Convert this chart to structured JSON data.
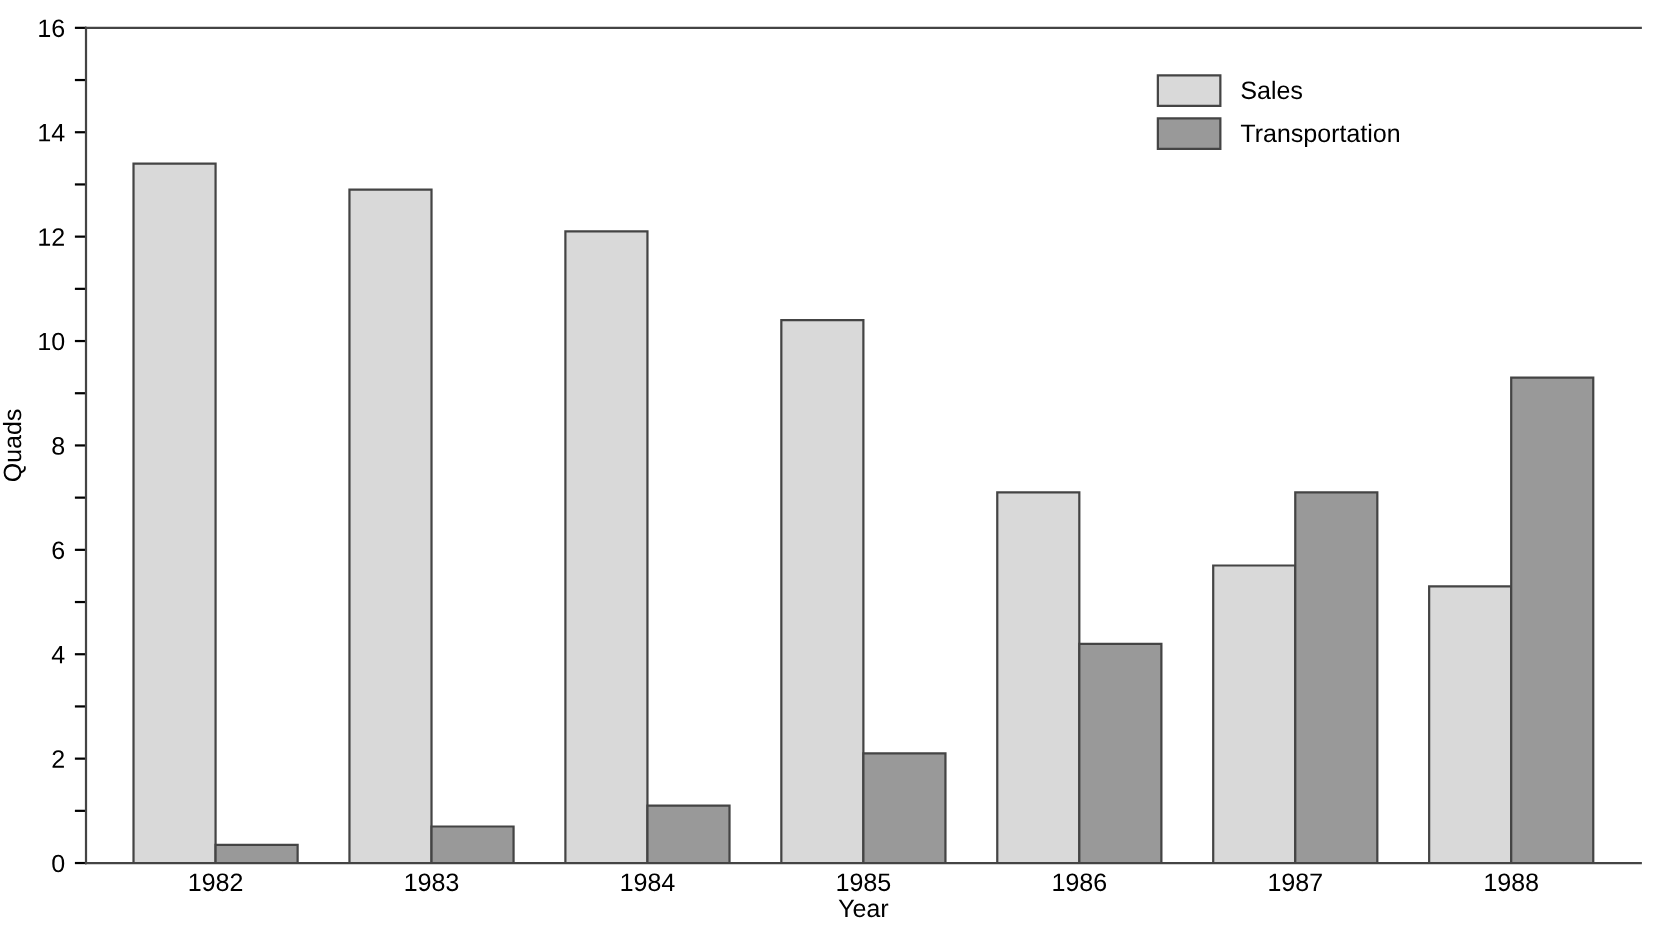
{
  "chart_data": {
    "type": "bar",
    "xlabel": "Year",
    "ylabel": "Quads",
    "categories": [
      "1982",
      "1983",
      "1984",
      "1985",
      "1986",
      "1987",
      "1988"
    ],
    "series": [
      {
        "name": "Sales",
        "color": "#d9d9d9",
        "values": [
          13.4,
          12.9,
          12.1,
          10.4,
          7.1,
          5.7,
          5.3
        ]
      },
      {
        "name": "Transportation",
        "color": "#999999",
        "values": [
          0.35,
          0.7,
          1.1,
          2.1,
          4.2,
          7.1,
          9.3
        ]
      }
    ],
    "ylim": [
      0,
      16
    ],
    "yticks": [
      0,
      {
        "value": 1,
        "label": null
      },
      2,
      {
        "value": 3,
        "label": null
      },
      4,
      {
        "value": 5,
        "label": null
      },
      6,
      {
        "value": 7,
        "label": null
      },
      8,
      {
        "value": 9,
        "label": null
      },
      10,
      {
        "value": 11,
        "label": null
      },
      12,
      {
        "value": 13,
        "label": null
      },
      14,
      {
        "value": 15,
        "label": null
      },
      16
    ],
    "grid": false,
    "legend": "top right"
  }
}
